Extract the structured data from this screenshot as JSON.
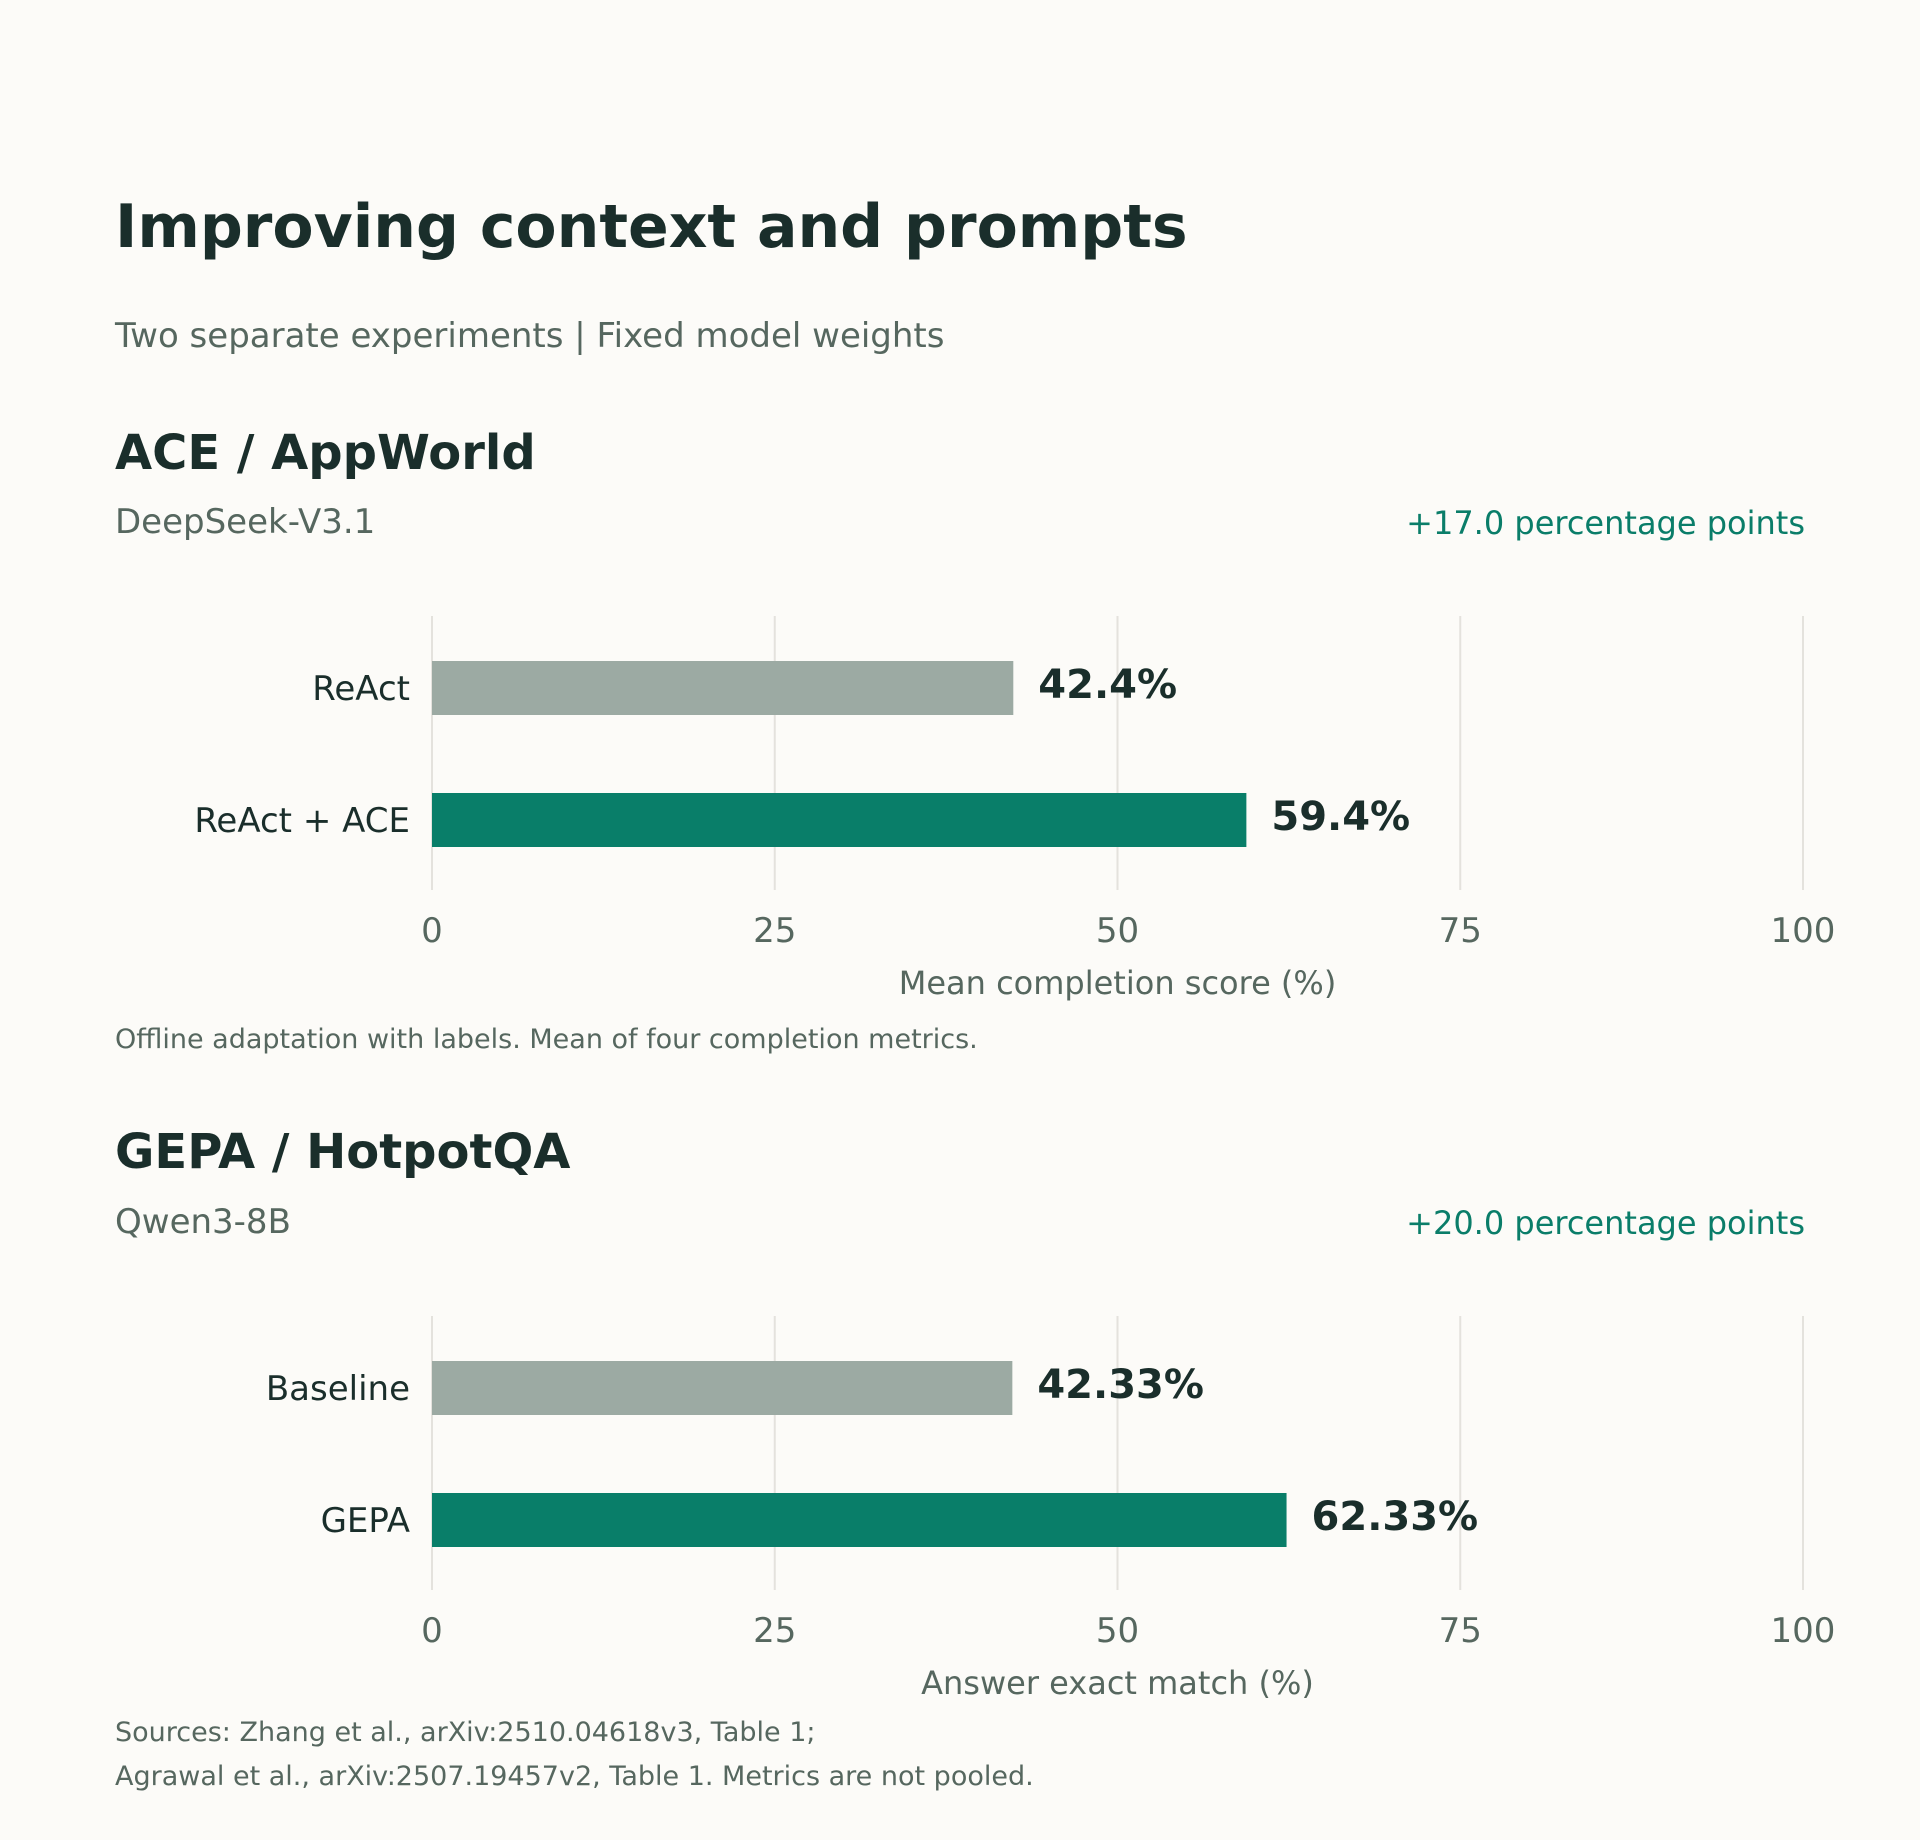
{
  "header": {
    "title": "Improving context and prompts",
    "subtitle": "Two separate experiments  |  Fixed model weights"
  },
  "colors": {
    "baseline": "#9caaa3",
    "improved": "#097e69",
    "grid": "#e4e2dd",
    "accent": "#0a7d69"
  },
  "panels": [
    {
      "title": "ACE  /  AppWorld",
      "model": "DeepSeek-V3.1",
      "delta": "+17.0 percentage points",
      "note": "Offline adaptation with labels. Mean of four completion metrics."
    },
    {
      "title": "GEPA  /  HotpotQA",
      "model": "Qwen3-8B",
      "delta": "+20.0 percentage points",
      "note_lines": [
        "Sources: Zhang et al., arXiv:2510.04618v3, Table 1;",
        "Agrawal et al., arXiv:2507.19457v2, Table 1. Metrics are not pooled."
      ]
    }
  ],
  "chart_data": [
    {
      "type": "bar",
      "orientation": "horizontal",
      "categories": [
        "ReAct",
        "ReAct + ACE"
      ],
      "values": [
        42.4,
        59.4
      ],
      "value_labels": [
        "42.4%",
        "59.4%"
      ],
      "xlabel": "Mean completion score (%)",
      "ylabel": "",
      "xlim": [
        0,
        100
      ],
      "ticks": [
        0,
        25,
        50,
        75,
        100
      ],
      "tick_labels": [
        "0",
        "25",
        "50",
        "75",
        "100"
      ],
      "grid": true
    },
    {
      "type": "bar",
      "orientation": "horizontal",
      "categories": [
        "Baseline",
        "GEPA"
      ],
      "values": [
        42.33,
        62.33
      ],
      "value_labels": [
        "42.33%",
        "62.33%"
      ],
      "xlabel": "Answer exact match (%)",
      "ylabel": "",
      "xlim": [
        0,
        100
      ],
      "ticks": [
        0,
        25,
        50,
        75,
        100
      ],
      "tick_labels": [
        "0",
        "25",
        "50",
        "75",
        "100"
      ],
      "grid": true
    }
  ]
}
